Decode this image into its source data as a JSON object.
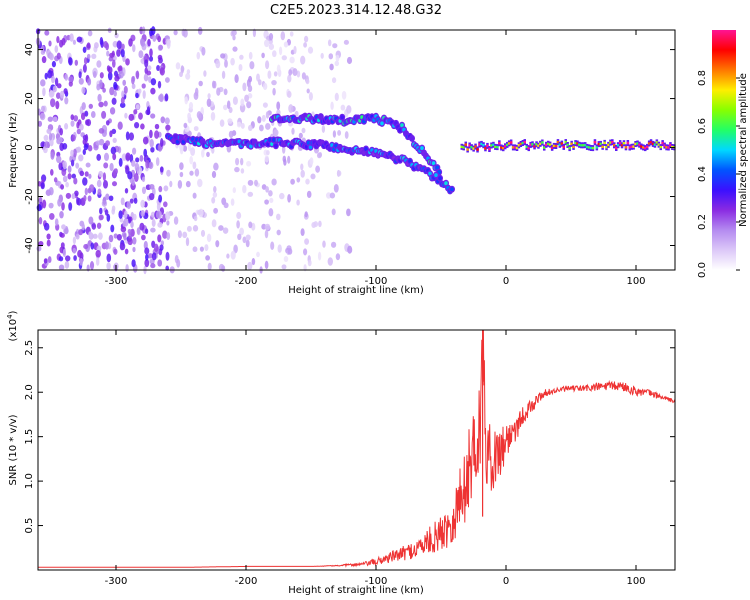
{
  "title": "C2E5.2023.314.12.48.G32",
  "chart_data": [
    {
      "type": "heatmap",
      "xlabel": "Height of straight line (km)",
      "ylabel": "Frequency (Hz)",
      "xlim": [
        -360,
        130
      ],
      "ylim": [
        -50,
        48
      ],
      "xticks": [
        -300,
        -200,
        -100,
        0,
        100
      ],
      "yticks": [
        -40,
        -20,
        0,
        20,
        40
      ],
      "grid": false,
      "colorbar": {
        "label": "Normalized spectral amplitude",
        "range": [
          0,
          1
        ],
        "ticks": [
          "0.0",
          "0.2",
          "0.4",
          "0.6",
          "0.8"
        ],
        "colormap": [
          "#ffffff",
          "#dcc8f8",
          "#b48af0",
          "#8a2be2",
          "#3b10ff",
          "#0055ff",
          "#00d8ff",
          "#22ff66",
          "#88ff00",
          "#ffee00",
          "#ff7700",
          "#ff0000",
          "#ff1493"
        ]
      },
      "features": [
        {
          "name": "noise",
          "x_range": [
            -360,
            -120
          ],
          "f_range": [
            -50,
            48
          ],
          "level": 0.1
        },
        {
          "name": "upper-branch",
          "points": [
            [
              -180,
              12
            ],
            [
              -150,
              12
            ],
            [
              -120,
              11
            ],
            [
              -100,
              12
            ],
            [
              -80,
              8
            ],
            [
              -60,
              -4
            ],
            [
              -50,
              -10
            ]
          ],
          "level": 0.45
        },
        {
          "name": "lower-branch",
          "points": [
            [
              -260,
              4
            ],
            [
              -220,
              1
            ],
            [
              -180,
              2
            ],
            [
              -140,
              1
            ],
            [
              -120,
              -1
            ],
            [
              -100,
              -2
            ],
            [
              -80,
              -5
            ],
            [
              -60,
              -10
            ],
            [
              -40,
              -18
            ]
          ],
          "level": 0.4
        },
        {
          "name": "carrier",
          "points": [
            [
              -35,
              0
            ],
            [
              0,
              1
            ],
            [
              60,
              1
            ],
            [
              130,
              1
            ]
          ],
          "level": 0.85
        }
      ]
    },
    {
      "type": "line",
      "xlabel": "Height of straight line (km)",
      "ylabel": "SNR (10 * v/v)",
      "yscale_label": "(x10^4)",
      "xlim": [
        -360,
        130
      ],
      "ylim": [
        0,
        2.7
      ],
      "xticks": [
        -300,
        -200,
        -100,
        0,
        100
      ],
      "yticks": [
        0.5,
        1.0,
        1.5,
        2.0,
        2.5
      ],
      "grid": false,
      "color": "#ee3333",
      "x": [
        -360,
        -300,
        -250,
        -200,
        -150,
        -130,
        -110,
        -100,
        -90,
        -80,
        -70,
        -60,
        -50,
        -45,
        -40,
        -35,
        -30,
        -25,
        -20,
        -18,
        -15,
        -10,
        -5,
        0,
        5,
        10,
        15,
        20,
        25,
        30,
        40,
        50,
        60,
        70,
        80,
        90,
        100,
        110,
        120,
        130
      ],
      "y": [
        0.03,
        0.03,
        0.03,
        0.04,
        0.04,
        0.05,
        0.07,
        0.1,
        0.15,
        0.2,
        0.25,
        0.35,
        0.45,
        0.55,
        0.65,
        0.9,
        1.1,
        1.5,
        1.7,
        2.7,
        1.4,
        1.3,
        1.4,
        1.5,
        1.6,
        1.7,
        1.8,
        1.85,
        1.95,
        2.0,
        2.03,
        2.05,
        2.05,
        2.07,
        2.08,
        2.08,
        2.02,
        2.0,
        1.95,
        1.9
      ],
      "noise_amplitude": [
        0,
        0,
        0,
        0,
        0,
        0.005,
        0.02,
        0.04,
        0.06,
        0.08,
        0.1,
        0.15,
        0.2,
        0.25,
        0.3,
        0.4,
        0.45,
        0.5,
        0.55,
        0.5,
        0.4,
        0.35,
        0.3,
        0.25,
        0.2,
        0.15,
        0.1,
        0.08,
        0.06,
        0.04,
        0.03,
        0.03,
        0.04,
        0.05,
        0.05,
        0.06,
        0.05,
        0.04,
        0.03,
        0.02
      ]
    }
  ]
}
